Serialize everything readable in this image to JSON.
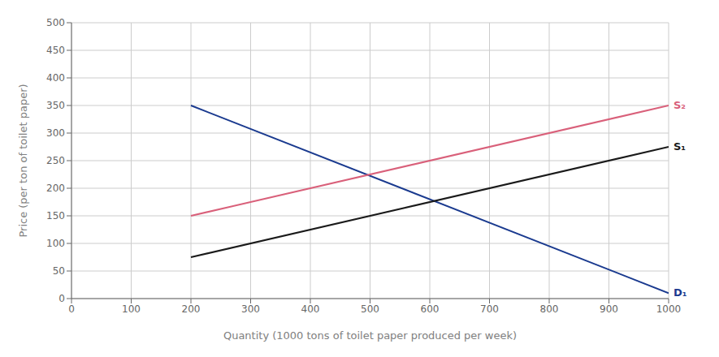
{
  "chart_data": {
    "type": "line",
    "xlabel": "Quantity (1000 tons of toilet paper produced per week)",
    "ylabel": "Price (per ton of toilet paper)",
    "x": [
      200,
      1000
    ],
    "series": [
      {
        "name": "D₁",
        "color": "#1a3a8f",
        "values": [
          350,
          10
        ]
      },
      {
        "name": "S₁",
        "color": "#1a1a1a",
        "values": [
          75,
          275
        ]
      },
      {
        "name": "S₂",
        "color": "#d9607a",
        "values": [
          150,
          350
        ]
      }
    ],
    "xlim": [
      0,
      1000
    ],
    "ylim": [
      0,
      500
    ],
    "xticks": [
      0,
      100,
      200,
      300,
      400,
      500,
      600,
      700,
      800,
      900,
      1000
    ],
    "yticks": [
      0,
      50,
      100,
      150,
      200,
      250,
      300,
      350,
      400,
      450,
      500
    ],
    "grid": true
  }
}
